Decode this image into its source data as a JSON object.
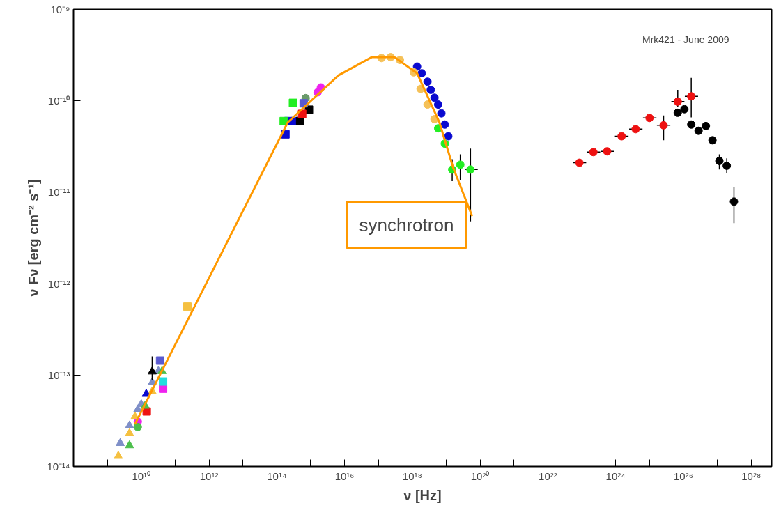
{
  "chart_data": {
    "type": "scatter",
    "xlabel": "ν [Hz]",
    "ylabel": "ν Fν [erg cm⁻² s⁻¹]",
    "log": "xy",
    "grid": false,
    "xlim": [
      100000000.0,
      4e+28
    ],
    "ylim": [
      1e-14,
      1e-09
    ],
    "xticks": [
      {
        "value": 1000000000.0,
        "label": null
      },
      {
        "value": 10000000000.0,
        "label": "10¹⁰"
      },
      {
        "value": 100000000000.0,
        "label": null
      },
      {
        "value": 1000000000000.0,
        "label": "10¹²"
      },
      {
        "value": 10000000000000.0,
        "label": null
      },
      {
        "value": 100000000000000.0,
        "label": "10¹⁴"
      },
      {
        "value": 1000000000000000.0,
        "label": null
      },
      {
        "value": 1e+16,
        "label": "10¹⁶"
      },
      {
        "value": 1e+17,
        "label": null
      },
      {
        "value": 1e+18,
        "label": "10¹⁸"
      },
      {
        "value": 1e+19,
        "label": null
      },
      {
        "value": 1e+20,
        "label": "10²⁰"
      },
      {
        "value": 1e+21,
        "label": null
      },
      {
        "value": 1e+22,
        "label": "10²²"
      },
      {
        "value": 1e+23,
        "label": null
      },
      {
        "value": 1e+24,
        "label": "10²⁴"
      },
      {
        "value": 1e+25,
        "label": null
      },
      {
        "value": 1e+26,
        "label": "10²⁶"
      },
      {
        "value": 1e+27,
        "label": null
      },
      {
        "value": 1e+28,
        "label": "10²⁸"
      }
    ],
    "yticks": [
      {
        "value": 1e-14,
        "label": "10⁻¹⁴"
      },
      {
        "value": 1e-13,
        "label": "10⁻¹³"
      },
      {
        "value": 1e-12,
        "label": "10⁻¹²"
      },
      {
        "value": 1e-11,
        "label": "10⁻¹¹"
      },
      {
        "value": 1e-10,
        "label": "10⁻¹⁰"
      },
      {
        "value": 1e-09,
        "label": "10⁻⁹"
      }
    ],
    "annotations": [
      "Mrk421 - June 2009"
    ],
    "series": [
      {
        "marker": "circle",
        "color": "#ee1111",
        "x": [
          8.5e+22,
          2.2e+23,
          5.6e+23,
          1.5e+24,
          3.9e+24,
          1e+25,
          2.6e+25,
          6.8e+25,
          1.7e+26
        ],
        "values": [
          2.1e-11,
          2.75e-11,
          2.8e-11,
          4.1e-11,
          4.9e-11,
          6.5e-11,
          5.4e-11,
          9.8e-11,
          1.12e-10
        ],
        "errors": [
          null,
          null,
          null,
          null,
          null,
          null,
          [
            3.7e-11,
            6.9e-11
          ],
          [
            8.5e-11,
            1.32e-10
          ],
          [
            6.6e-11,
            1.78e-10
          ]
        ],
        "xerrors": [
          [
            5.5e+22,
            1.35e+23
          ],
          [
            1.4e+23,
            3.5e+23
          ],
          [
            3.6e+23,
            9e+23
          ],
          [
            9.5e+23,
            2.4e+24
          ],
          [
            2.5e+24,
            6.2e+24
          ],
          [
            6.4e+24,
            1.6e+25
          ],
          [
            1.65e+25,
            4.1e+25
          ],
          [
            4.4e+25,
            1.07e+26
          ],
          [
            1.1e+26,
            2.7e+26
          ]
        ]
      },
      {
        "marker": "circle",
        "color": "#000000",
        "x": [
          6.8e+25,
          1.07e+26,
          1.7e+26,
          2.8e+26,
          4.6e+26,
          7.2e+26,
          1.15e+27,
          1.9e+27,
          3.1e+27
        ],
        "values": [
          7.4e-11,
          8.1e-11,
          5.5e-11,
          4.7e-11,
          5.3e-11,
          3.7e-11,
          2.2e-11,
          1.95e-11,
          7.9e-12
        ],
        "errors": [
          null,
          null,
          null,
          null,
          null,
          null,
          [
            1.77e-11,
            2.6e-11
          ],
          [
            1.6e-11,
            2.35e-11
          ],
          [
            4.6e-12,
            1.15e-11
          ]
        ]
      },
      {
        "marker": "circle",
        "color": "#0a0ad0",
        "x": [
          1.38e+18,
          1.9e+18,
          2.8e+18,
          3.5e+18,
          4.5e+18,
          5.8e+18,
          7.2e+18,
          9.1e+18,
          1.15e+19
        ],
        "values": [
          2.37e-10,
          2e-10,
          1.62e-10,
          1.32e-10,
          1.08e-10,
          9.1e-11,
          7.3e-11,
          5.5e-11,
          4.1e-11
        ]
      },
      {
        "marker": "circle",
        "color": "#f5c158",
        "x": [
          1.23e+17,
          2.3e+17,
          4.3e+17,
          1.1e+18,
          1.75e+18,
          2.8e+18,
          4.5e+18
        ],
        "values": [
          2.94e-10,
          3e-10,
          2.8e-10,
          2.05e-10,
          1.35e-10,
          9.1e-11,
          6.3e-11
        ]
      },
      {
        "marker": "circle",
        "color": "#22ee22",
        "x": [
          5.8e+18,
          9.1e+18,
          1.5e+19,
          2.6e+19,
          5.2e+19
        ],
        "values": [
          5e-11,
          3.4e-11,
          1.77e-11,
          2e-11,
          1.77e-11
        ],
        "errors": [
          null,
          null,
          [
            1.32e-11,
            2.3e-11
          ],
          [
            1.35e-11,
            2.6e-11
          ],
          [
            4.8e-12,
            3e-11
          ]
        ],
        "xerrors": [
          null,
          null,
          null,
          null,
          [
            3.7e+19,
            8.5e+19
          ]
        ]
      },
      {
        "marker": "square",
        "color": "#0a0ad0",
        "x": [
          180000000000000.0,
          220000000000000.0,
          350000000000000.0
        ],
        "values": [
          4.3e-11,
          6e-11,
          6e-11
        ]
      },
      {
        "marker": "square",
        "color": "#22ee22",
        "x": [
          160000000000000.0,
          300000000000000.0
        ],
        "values": [
          6e-11,
          9.5e-11
        ]
      },
      {
        "marker": "square",
        "color": "#000000",
        "x": [
          490000000000000.0,
          890000000000000.0
        ],
        "values": [
          6e-11,
          8e-11
        ]
      },
      {
        "marker": "square",
        "color": "#ee1111",
        "x": [
          560000000000000.0,
          14500000000.0
        ],
        "values": [
          7.2e-11,
          4e-14
        ]
      },
      {
        "marker": "circle",
        "color": "#6a9a6a",
        "x": [
          710000000000000.0
        ],
        "values": [
          1.07e-10
        ]
      },
      {
        "marker": "square",
        "color": "#5a5ad0",
        "x": [
          620000000000000.0,
          36000000000.0
        ],
        "values": [
          9.4e-11,
          1.44e-13
        ]
      },
      {
        "marker": "circle",
        "color": "#ee22ee",
        "x": [
          1600000000000000.0,
          2000000000000000.0,
          7900000000.0
        ],
        "values": [
          1.24e-10,
          1.4e-10,
          3.1e-14
        ]
      },
      {
        "marker": "square",
        "color": "#ee22ee",
        "x": [
          44000000000.0
        ],
        "values": [
          7.1e-14
        ]
      },
      {
        "marker": "square",
        "color": "#22dddd",
        "x": [
          44000000000.0
        ],
        "values": [
          8.5e-14
        ]
      },
      {
        "marker": "triangle",
        "color": "#f5c040",
        "x": [
          2100000000.0,
          4500000000.0,
          6500000000.0,
          21000000000.0
        ],
        "values": [
          1.3e-14,
          2.3e-14,
          3.5e-14,
          6.6e-14
        ]
      },
      {
        "marker": "square",
        "color": "#f5c040",
        "x": [
          230000000000.0
        ],
        "values": [
          5.6e-13
        ]
      },
      {
        "marker": "triangle",
        "color": "#7f8fc8",
        "x": [
          2400000000.0,
          4500000000.0,
          7900000000.0,
          10000000000.0,
          21000000000.0,
          32000000000.0
        ],
        "values": [
          1.8e-14,
          2.8e-14,
          4.2e-14,
          4.8e-14,
          8.3e-14,
          1.1e-13
        ]
      },
      {
        "marker": "triangle",
        "color": "#4cbf4c",
        "x": [
          4500000000.0,
          13000000000.0,
          41000000000.0
        ],
        "values": [
          1.7e-14,
          4.6e-14,
          1.1e-13
        ]
      },
      {
        "marker": "circle",
        "color": "#4cbf4c",
        "x": [
          7900000000.0
        ],
        "values": [
          2.7e-14
        ]
      },
      {
        "marker": "triangle",
        "color": "#0a0ad0",
        "x": [
          14000000000.0
        ],
        "values": [
          6.2e-14
        ]
      },
      {
        "marker": "triangle",
        "color": "#000000",
        "x": [
          21000000000.0
        ],
        "values": [
          1.09e-13
        ],
        "errors": [
          [
            8.8e-14,
            1.6e-13
          ]
        ]
      },
      {
        "type": "line",
        "name": "synchrotron",
        "color": "#ff9900",
        "x": [
          6500000000.0,
          210000000000000.0,
          6600000000000000.0,
          6.3e+16,
          3e+17,
          1.38e+18,
          6.3e+18,
          1.6e+19,
          5.8e+19
        ],
        "values": [
          2.9e-14,
          5.8e-11,
          1.9e-10,
          3e-10,
          3e-10,
          2e-10,
          5.8e-11,
          1.86e-11,
          5.5e-12
        ]
      }
    ]
  }
}
